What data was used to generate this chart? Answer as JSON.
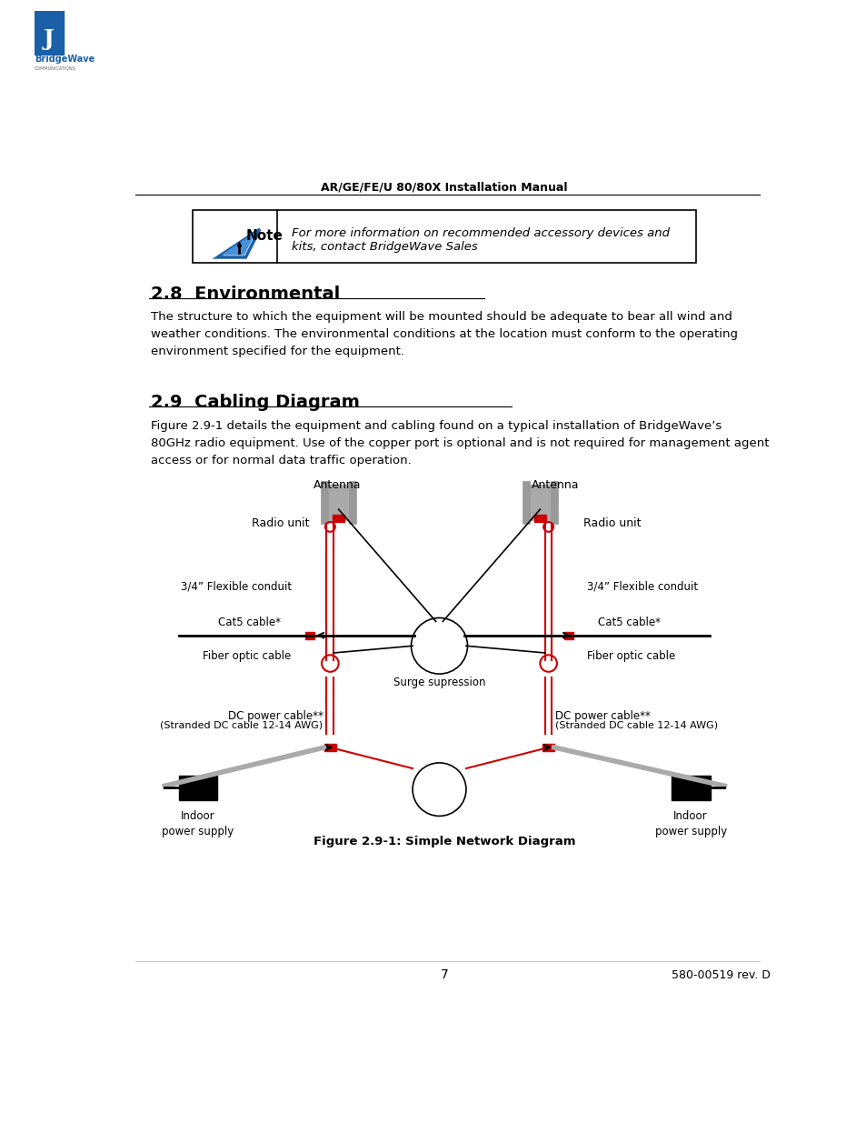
{
  "page_title": "AR/GE/FE/U 80/80X Installation Manual",
  "page_num": "7",
  "page_footer": "580-00519 rev. D",
  "note_text": "For more information on recommended accessory devices and\nkits, contact BridgeWave Sales",
  "section_28_title": "2.8  Environmental",
  "section_28_body": "The structure to which the equipment will be mounted should be adequate to bear all wind and\nweather conditions. The environmental conditions at the location must conform to the operating\nenvironment specified for the equipment.",
  "section_29_title": "2.9  Cabling Diagram",
  "section_29_body": "Figure 2.9-1 details the equipment and cabling found on a typical installation of BridgeWave’s\n80GHz radio equipment. Use of the copper port is optional and is not required for management agent\naccess or for normal data traffic operation.",
  "fig_caption": "Figure 2.9-1: Simple Network Diagram",
  "bg_color": "#ffffff",
  "text_color": "#000000",
  "red_color": "#cc0000",
  "gray_color": "#888888",
  "dark_color": "#222222"
}
